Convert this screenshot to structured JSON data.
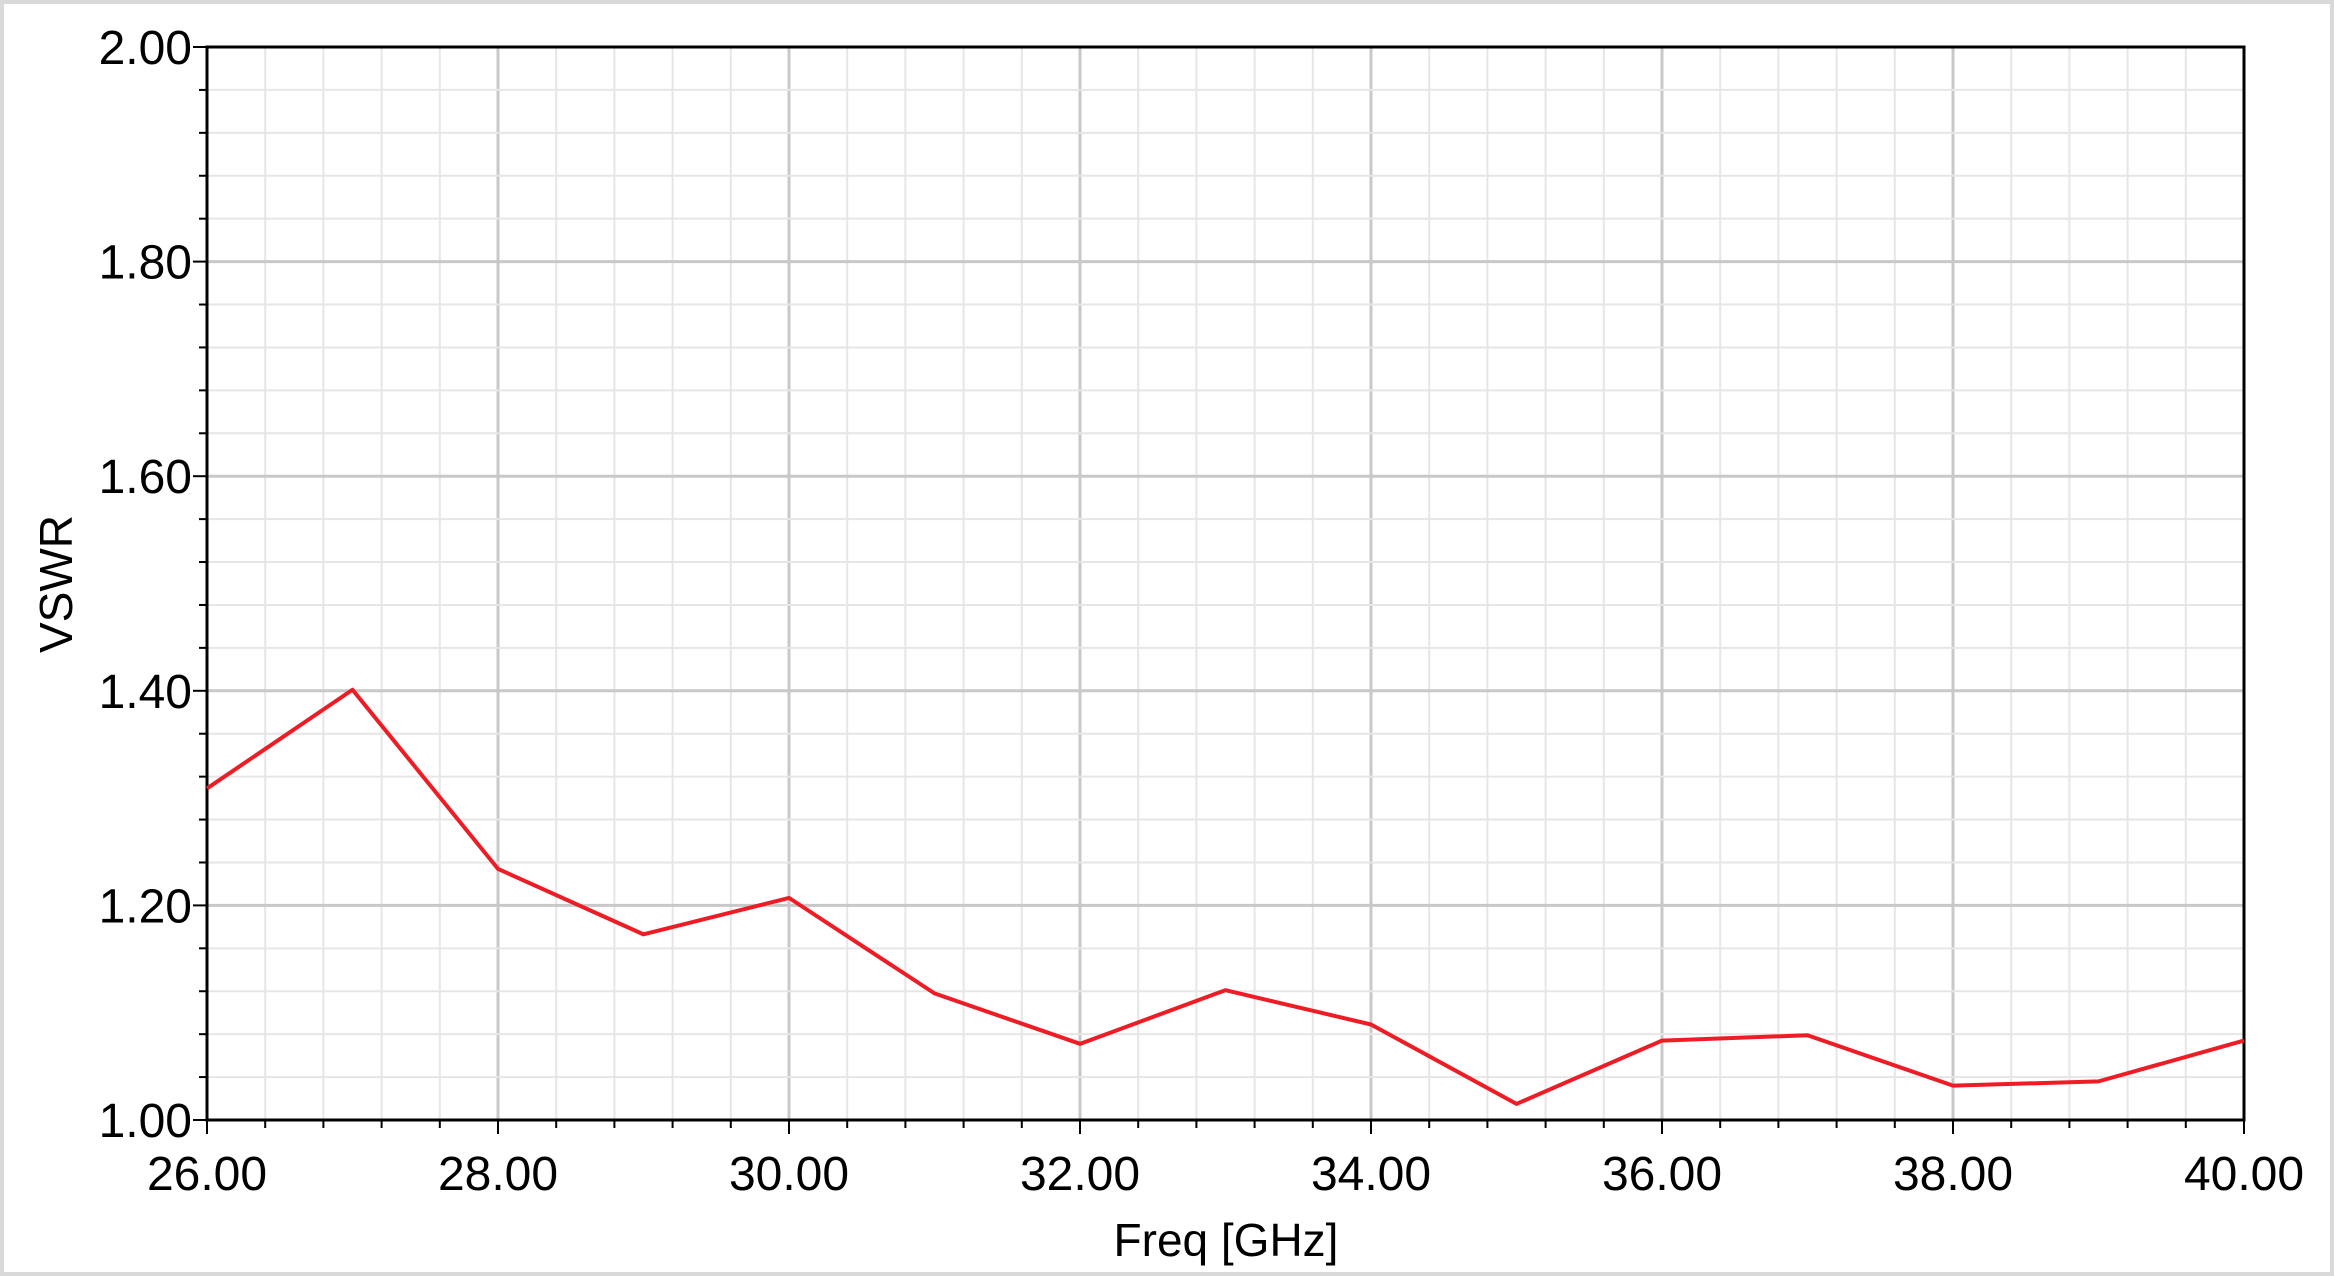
{
  "chart_data": {
    "type": "line",
    "title": "",
    "xlabel": "Freq [GHz]",
    "ylabel": "VSWR",
    "xlim": [
      26,
      40
    ],
    "ylim": [
      1.0,
      2.0
    ],
    "x_ticks": [
      "26.00",
      "28.00",
      "30.00",
      "32.00",
      "34.00",
      "36.00",
      "38.00",
      "40.00"
    ],
    "y_ticks": [
      "1.00",
      "1.20",
      "1.40",
      "1.60",
      "1.80",
      "2.00"
    ],
    "grid": true,
    "legend": "none",
    "series": [
      {
        "color": "#ee1c25",
        "x": [
          26,
          27,
          28,
          29,
          30,
          31,
          32,
          33,
          34,
          35,
          36,
          37,
          38,
          39,
          40
        ],
        "y": [
          1.309,
          1.401,
          1.234,
          1.173,
          1.207,
          1.118,
          1.071,
          1.121,
          1.089,
          1.015,
          1.074,
          1.079,
          1.032,
          1.036,
          1.074
        ]
      }
    ]
  }
}
